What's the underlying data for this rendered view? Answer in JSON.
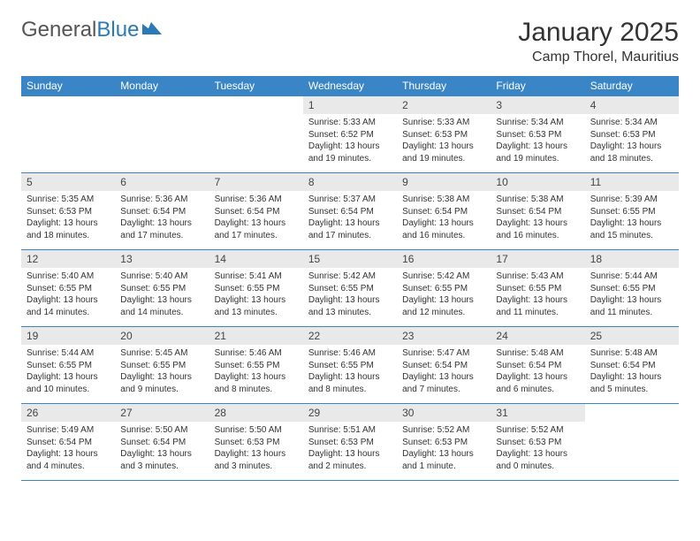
{
  "logo": {
    "word1": "General",
    "word2": "Blue",
    "icon_color": "#2b7ab8"
  },
  "title": "January 2025",
  "location": "Camp Thorel, Mauritius",
  "header_bg": "#3a85c6",
  "header_fg": "#ffffff",
  "daynum_bg": "#e9e9e9",
  "border_color": "#3a85c6",
  "weekdays": [
    "Sunday",
    "Monday",
    "Tuesday",
    "Wednesday",
    "Thursday",
    "Friday",
    "Saturday"
  ],
  "weeks": [
    [
      {
        "empty": true
      },
      {
        "empty": true
      },
      {
        "empty": true
      },
      {
        "day": "1",
        "sunrise": "Sunrise: 5:33 AM",
        "sunset": "Sunset: 6:52 PM",
        "daylight": "Daylight: 13 hours and 19 minutes."
      },
      {
        "day": "2",
        "sunrise": "Sunrise: 5:33 AM",
        "sunset": "Sunset: 6:53 PM",
        "daylight": "Daylight: 13 hours and 19 minutes."
      },
      {
        "day": "3",
        "sunrise": "Sunrise: 5:34 AM",
        "sunset": "Sunset: 6:53 PM",
        "daylight": "Daylight: 13 hours and 19 minutes."
      },
      {
        "day": "4",
        "sunrise": "Sunrise: 5:34 AM",
        "sunset": "Sunset: 6:53 PM",
        "daylight": "Daylight: 13 hours and 18 minutes."
      }
    ],
    [
      {
        "day": "5",
        "sunrise": "Sunrise: 5:35 AM",
        "sunset": "Sunset: 6:53 PM",
        "daylight": "Daylight: 13 hours and 18 minutes."
      },
      {
        "day": "6",
        "sunrise": "Sunrise: 5:36 AM",
        "sunset": "Sunset: 6:54 PM",
        "daylight": "Daylight: 13 hours and 17 minutes."
      },
      {
        "day": "7",
        "sunrise": "Sunrise: 5:36 AM",
        "sunset": "Sunset: 6:54 PM",
        "daylight": "Daylight: 13 hours and 17 minutes."
      },
      {
        "day": "8",
        "sunrise": "Sunrise: 5:37 AM",
        "sunset": "Sunset: 6:54 PM",
        "daylight": "Daylight: 13 hours and 17 minutes."
      },
      {
        "day": "9",
        "sunrise": "Sunrise: 5:38 AM",
        "sunset": "Sunset: 6:54 PM",
        "daylight": "Daylight: 13 hours and 16 minutes."
      },
      {
        "day": "10",
        "sunrise": "Sunrise: 5:38 AM",
        "sunset": "Sunset: 6:54 PM",
        "daylight": "Daylight: 13 hours and 16 minutes."
      },
      {
        "day": "11",
        "sunrise": "Sunrise: 5:39 AM",
        "sunset": "Sunset: 6:55 PM",
        "daylight": "Daylight: 13 hours and 15 minutes."
      }
    ],
    [
      {
        "day": "12",
        "sunrise": "Sunrise: 5:40 AM",
        "sunset": "Sunset: 6:55 PM",
        "daylight": "Daylight: 13 hours and 14 minutes."
      },
      {
        "day": "13",
        "sunrise": "Sunrise: 5:40 AM",
        "sunset": "Sunset: 6:55 PM",
        "daylight": "Daylight: 13 hours and 14 minutes."
      },
      {
        "day": "14",
        "sunrise": "Sunrise: 5:41 AM",
        "sunset": "Sunset: 6:55 PM",
        "daylight": "Daylight: 13 hours and 13 minutes."
      },
      {
        "day": "15",
        "sunrise": "Sunrise: 5:42 AM",
        "sunset": "Sunset: 6:55 PM",
        "daylight": "Daylight: 13 hours and 13 minutes."
      },
      {
        "day": "16",
        "sunrise": "Sunrise: 5:42 AM",
        "sunset": "Sunset: 6:55 PM",
        "daylight": "Daylight: 13 hours and 12 minutes."
      },
      {
        "day": "17",
        "sunrise": "Sunrise: 5:43 AM",
        "sunset": "Sunset: 6:55 PM",
        "daylight": "Daylight: 13 hours and 11 minutes."
      },
      {
        "day": "18",
        "sunrise": "Sunrise: 5:44 AM",
        "sunset": "Sunset: 6:55 PM",
        "daylight": "Daylight: 13 hours and 11 minutes."
      }
    ],
    [
      {
        "day": "19",
        "sunrise": "Sunrise: 5:44 AM",
        "sunset": "Sunset: 6:55 PM",
        "daylight": "Daylight: 13 hours and 10 minutes."
      },
      {
        "day": "20",
        "sunrise": "Sunrise: 5:45 AM",
        "sunset": "Sunset: 6:55 PM",
        "daylight": "Daylight: 13 hours and 9 minutes."
      },
      {
        "day": "21",
        "sunrise": "Sunrise: 5:46 AM",
        "sunset": "Sunset: 6:55 PM",
        "daylight": "Daylight: 13 hours and 8 minutes."
      },
      {
        "day": "22",
        "sunrise": "Sunrise: 5:46 AM",
        "sunset": "Sunset: 6:55 PM",
        "daylight": "Daylight: 13 hours and 8 minutes."
      },
      {
        "day": "23",
        "sunrise": "Sunrise: 5:47 AM",
        "sunset": "Sunset: 6:54 PM",
        "daylight": "Daylight: 13 hours and 7 minutes."
      },
      {
        "day": "24",
        "sunrise": "Sunrise: 5:48 AM",
        "sunset": "Sunset: 6:54 PM",
        "daylight": "Daylight: 13 hours and 6 minutes."
      },
      {
        "day": "25",
        "sunrise": "Sunrise: 5:48 AM",
        "sunset": "Sunset: 6:54 PM",
        "daylight": "Daylight: 13 hours and 5 minutes."
      }
    ],
    [
      {
        "day": "26",
        "sunrise": "Sunrise: 5:49 AM",
        "sunset": "Sunset: 6:54 PM",
        "daylight": "Daylight: 13 hours and 4 minutes."
      },
      {
        "day": "27",
        "sunrise": "Sunrise: 5:50 AM",
        "sunset": "Sunset: 6:54 PM",
        "daylight": "Daylight: 13 hours and 3 minutes."
      },
      {
        "day": "28",
        "sunrise": "Sunrise: 5:50 AM",
        "sunset": "Sunset: 6:53 PM",
        "daylight": "Daylight: 13 hours and 3 minutes."
      },
      {
        "day": "29",
        "sunrise": "Sunrise: 5:51 AM",
        "sunset": "Sunset: 6:53 PM",
        "daylight": "Daylight: 13 hours and 2 minutes."
      },
      {
        "day": "30",
        "sunrise": "Sunrise: 5:52 AM",
        "sunset": "Sunset: 6:53 PM",
        "daylight": "Daylight: 13 hours and 1 minute."
      },
      {
        "day": "31",
        "sunrise": "Sunrise: 5:52 AM",
        "sunset": "Sunset: 6:53 PM",
        "daylight": "Daylight: 13 hours and 0 minutes."
      },
      {
        "empty": true
      }
    ]
  ]
}
